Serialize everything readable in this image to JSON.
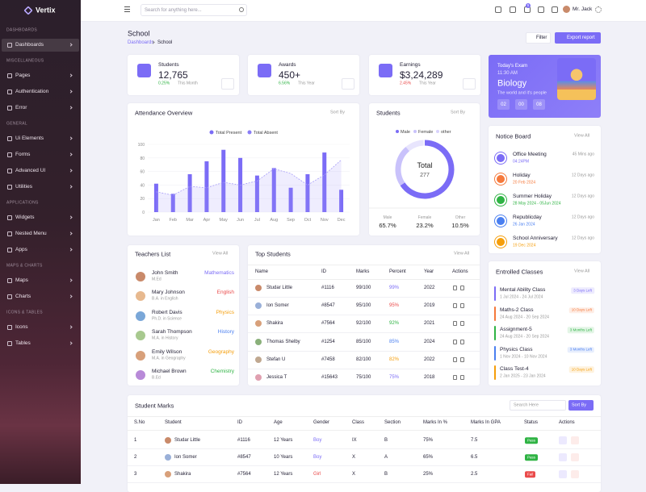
{
  "sidebar": {
    "brand": "Vertix",
    "sections": [
      {
        "heading": "DASHBOARDS",
        "items": [
          "Dashboards"
        ]
      },
      {
        "heading": "MISCELLANEOUS",
        "items": [
          "Pages",
          "Authentication",
          "Error"
        ]
      },
      {
        "heading": "GENERAL",
        "items": [
          "Ui Elements",
          "Forms",
          "Advanced UI",
          "Utilities"
        ]
      },
      {
        "heading": "APPLICATIONS",
        "items": [
          "Widgets",
          "Nested Menu",
          "Apps"
        ]
      },
      {
        "heading": "MAPS & CHARTS",
        "items": [
          "Maps",
          "Charts"
        ]
      },
      {
        "heading": "ICONS & TABLES",
        "items": [
          "Icons",
          "Tables"
        ]
      }
    ]
  },
  "header": {
    "search": "Search for anything here...",
    "badge": "5",
    "user": "Mr. Jack"
  },
  "page": {
    "title": "School",
    "breadcrumb": [
      "Dashboards",
      "School"
    ],
    "filter": "Filter",
    "export": "Export report"
  },
  "stats": [
    {
      "label": "Students",
      "value": "12,765",
      "change": "0.25%",
      "period": "This Month"
    },
    {
      "label": "Awards",
      "value": "450+",
      "change": "6.56%",
      "period": "This Year"
    },
    {
      "label": "Earnings",
      "value": "$3,24,289",
      "change": "2.45%",
      "period": "This Year"
    }
  ],
  "exam": {
    "label": "Today's Exam",
    "time": "11:30 AM",
    "subject": "Biology",
    "subtitle": "The world and it's people",
    "countdown": [
      "02",
      "00",
      "08"
    ]
  },
  "attendance": {
    "sort": "Sort By"
  },
  "students_card": {
    "sort": "Sort By"
  },
  "chart_data": [
    {
      "type": "bar",
      "title": "Attendance Overview",
      "categories": [
        "Jan",
        "Feb",
        "Mar",
        "Apr",
        "May",
        "Jun",
        "Jul",
        "Aug",
        "Sep",
        "Oct",
        "Nov",
        "Dec"
      ],
      "series": [
        {
          "name": "Total Present",
          "color": "#7b6cf6",
          "values": [
            42,
            27,
            56,
            75,
            92,
            80,
            54,
            65,
            36,
            56,
            88,
            33
          ]
        },
        {
          "name": "Total Absent",
          "color": "#a79df8",
          "type": "area",
          "values": [
            30,
            25,
            38,
            36,
            44,
            40,
            46,
            64,
            57,
            40,
            55,
            77
          ]
        }
      ],
      "ylim": [
        0,
        100
      ],
      "yticks": [
        0,
        20,
        40,
        60,
        80,
        100
      ],
      "grid": true
    },
    {
      "type": "donut",
      "title": "Students",
      "center_label": "Total",
      "total": 277,
      "categories": [
        "Male",
        "Female",
        "other"
      ],
      "stat_labels": [
        "Male",
        "Female",
        "Other"
      ],
      "values": [
        65.7,
        23.2,
        10.5
      ],
      "value_labels": [
        "65.7%",
        "23.2%",
        "10.5%"
      ],
      "colors": [
        "#7b6cf6",
        "#c9c2fb",
        "#e8e5fd"
      ]
    }
  ],
  "notice_board": {
    "title": "Notice Board",
    "view_all": "View All",
    "items": [
      {
        "title": "Office Meeting",
        "date": "04:24PM",
        "ago": "45 Mins ago"
      },
      {
        "title": "Holiday",
        "date": "20 Feb 2024",
        "ago": "12 Days ago"
      },
      {
        "title": "Summer Holiday",
        "date": "28 May 2024 - 05Jun 2024",
        "ago": "12 Days ago"
      },
      {
        "title": "Republicday",
        "date": "26 Jan 2024",
        "ago": "12 Days ago"
      },
      {
        "title": "School Anniversary",
        "date": "19 Dec 2024",
        "ago": "12 Days ago"
      }
    ]
  },
  "teachers": {
    "title": "Teachers List",
    "view_all": "View All",
    "items": [
      {
        "name": "John Smith",
        "degree": "M.Ed",
        "subject": "Mathematics"
      },
      {
        "name": "Mary Johnson",
        "degree": "B.A. in English",
        "subject": "English"
      },
      {
        "name": "Robert Davis",
        "degree": "Ph.D. in Science",
        "subject": "Physics"
      },
      {
        "name": "Sarah Thompson",
        "degree": "M.A. in History",
        "subject": "History"
      },
      {
        "name": "Emily Wilson",
        "degree": "M.A. in Geography",
        "subject": "Geography"
      },
      {
        "name": "Michael Brown",
        "degree": "B.Ed",
        "subject": "Chemistry"
      }
    ]
  },
  "top_students": {
    "title": "Top Students",
    "view_all": "View All",
    "columns": [
      "Name",
      "ID",
      "Marks",
      "Percent",
      "Year",
      "Actions"
    ],
    "rows": [
      [
        "Studar Little",
        "#1116",
        "99/100",
        "99%",
        "2022"
      ],
      [
        "Ion Somer",
        "#8547",
        "95/100",
        "95%",
        "2019"
      ],
      [
        "Shakira",
        "#7564",
        "92/100",
        "92%",
        "2021"
      ],
      [
        "Thomas Shelby",
        "#1254",
        "85/100",
        "85%",
        "2024"
      ],
      [
        "Stefan U",
        "#7458",
        "82/100",
        "82%",
        "2022"
      ],
      [
        "Jessica T",
        "#15643",
        "75/100",
        "75%",
        "2018"
      ]
    ]
  },
  "enrolled": {
    "title": "Entrolled Classes",
    "view_all": "View All",
    "items": [
      {
        "title": "Mental Ability Class",
        "dates": "1 Jul 2024 - 24 Jul 2024",
        "status": "3 Days Left"
      },
      {
        "title": "Maths-2 Class",
        "dates": "24 Aug 2024 - 20 Sep 2024",
        "status": "10 Days Left"
      },
      {
        "title": "Assignment-5",
        "dates": "24 Aug 2024 - 20 Sep 2024",
        "status": "3 Months Left"
      },
      {
        "title": "Physics Class",
        "dates": "1 Nov 2024 - 10 Nov 2024",
        "status": "3 Months Left"
      },
      {
        "title": "Class Test-4",
        "dates": "2 Jan 2025 - 23 Jan 2024",
        "status": "10 Days Left"
      }
    ]
  },
  "student_marks": {
    "title": "Student Marks",
    "search": "Search Here",
    "sort": "Sort By",
    "columns": [
      "S.No",
      "Student",
      "ID",
      "Age",
      "Gender",
      "Class",
      "Section",
      "Marks In %",
      "Marks In GPA",
      "Status",
      "Actions"
    ],
    "rows": [
      [
        "1",
        "Studar Little",
        "#1116",
        "12 Years",
        "Boy",
        "IX",
        "B",
        "75%",
        "7.5",
        "Pass"
      ],
      [
        "2",
        "Ion Somer",
        "#8547",
        "10 Years",
        "Boy",
        "X",
        "A",
        "65%",
        "6.5",
        "Pass"
      ],
      [
        "3",
        "Shakira",
        "#7564",
        "12 Years",
        "Girl",
        "X",
        "B",
        "25%",
        "2.5",
        "Fail"
      ]
    ]
  }
}
